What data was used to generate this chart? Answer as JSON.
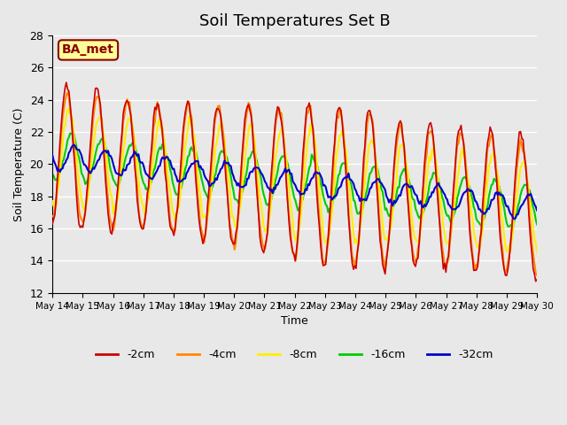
{
  "title": "Soil Temperatures Set B",
  "xlabel": "Time",
  "ylabel": "Soil Temperature (C)",
  "ylim": [
    12,
    28
  ],
  "yticks": [
    12,
    14,
    16,
    18,
    20,
    22,
    24,
    26,
    28
  ],
  "annotation": "BA_met",
  "background_color": "#e8e8e8",
  "plot_bg_color": "#e8e8e8",
  "series": {
    "-2cm": {
      "color": "#cc0000",
      "lw": 1.2
    },
    "-4cm": {
      "color": "#ff8800",
      "lw": 1.5
    },
    "-8cm": {
      "color": "#ffee00",
      "lw": 1.5
    },
    "-16cm": {
      "color": "#00cc00",
      "lw": 1.5
    },
    "-32cm": {
      "color": "#0000cc",
      "lw": 1.5
    }
  },
  "days": 16,
  "start_day": 14,
  "points_per_day": 24
}
